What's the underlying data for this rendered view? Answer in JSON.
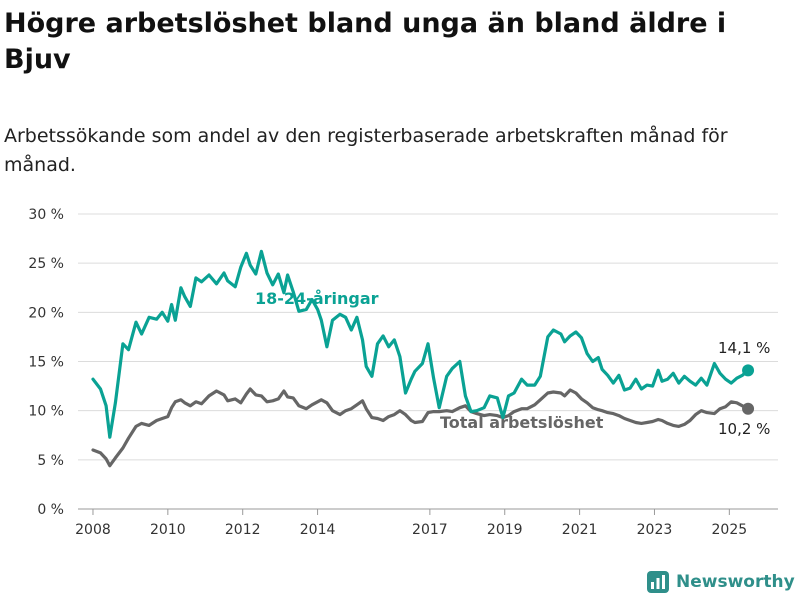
{
  "header": {
    "title": "Högre arbetslöshet bland unga än bland äldre i Bjuv",
    "subtitle": "Arbetssökande som andel av den registerbaserade arbetskraften månad för månad."
  },
  "brand": {
    "name": "Newsworthy",
    "color": "#2f8f8a"
  },
  "chart_data": {
    "type": "line",
    "title": "Högre arbetslöshet bland unga än bland äldre i Bjuv",
    "subtitle": "Arbetssökande som andel av den registerbaserade arbetskraften månad för månad.",
    "xlabel": "",
    "ylabel": "",
    "ylim": [
      0,
      30
    ],
    "xlim": [
      2007.6,
      2026.3
    ],
    "y_ticks": [
      0,
      5,
      10,
      15,
      20,
      25,
      30
    ],
    "y_tick_labels": [
      "0 %",
      "5 %",
      "10 %",
      "15 %",
      "20 %",
      "25 %",
      "30 %"
    ],
    "x_ticks": [
      2008,
      2010,
      2012,
      2014,
      2017,
      2019,
      2021,
      2023,
      2025
    ],
    "x_tick_labels": [
      "2008",
      "2010",
      "2012",
      "2014",
      "2017",
      "2019",
      "2021",
      "2023",
      "2025"
    ],
    "grid": "horizontal",
    "series": [
      {
        "name": "18-24-åringar",
        "color": "#0aa294",
        "end_label": "14,1 %",
        "x": [
          2008.0,
          2008.2,
          2008.35,
          2008.45,
          2008.6,
          2008.8,
          2008.95,
          2009.15,
          2009.3,
          2009.5,
          2009.7,
          2009.85,
          2010.0,
          2010.1,
          2010.2,
          2010.35,
          2010.45,
          2010.6,
          2010.75,
          2010.9,
          2011.1,
          2011.3,
          2011.5,
          2011.6,
          2011.8,
          2011.95,
          2012.1,
          2012.2,
          2012.35,
          2012.5,
          2012.65,
          2012.8,
          2012.95,
          2013.1,
          2013.2,
          2013.35,
          2013.5,
          2013.7,
          2013.85,
          2014.0,
          2014.1,
          2014.25,
          2014.4,
          2014.6,
          2014.75,
          2014.9,
          2015.05,
          2015.2,
          2015.3,
          2015.45,
          2015.6,
          2015.75,
          2015.9,
          2016.05,
          2016.2,
          2016.35,
          2016.5,
          2016.6,
          2016.8,
          2016.95,
          2017.1,
          2017.25,
          2017.45,
          2017.6,
          2017.8,
          2017.95,
          2018.1,
          2018.25,
          2018.45,
          2018.6,
          2018.8,
          2018.95,
          2019.1,
          2019.25,
          2019.45,
          2019.6,
          2019.8,
          2019.95,
          2020.15,
          2020.3,
          2020.5,
          2020.6,
          2020.75,
          2020.9,
          2021.05,
          2021.2,
          2021.35,
          2021.5,
          2021.6,
          2021.75,
          2021.9,
          2022.05,
          2022.2,
          2022.35,
          2022.5,
          2022.65,
          2022.8,
          2022.95,
          2023.1,
          2023.2,
          2023.35,
          2023.5,
          2023.65,
          2023.8,
          2023.95,
          2024.1,
          2024.25,
          2024.4,
          2024.6,
          2024.75,
          2024.9,
          2025.05,
          2025.2,
          2025.35,
          2025.5
        ],
        "values": [
          13.2,
          12.2,
          10.5,
          7.3,
          10.8,
          16.8,
          16.2,
          19.0,
          17.8,
          19.5,
          19.3,
          20.0,
          19.1,
          20.8,
          19.2,
          22.5,
          21.6,
          20.6,
          23.5,
          23.1,
          23.8,
          22.9,
          24.0,
          23.2,
          22.6,
          24.6,
          26.0,
          24.8,
          23.9,
          26.2,
          24.0,
          22.8,
          23.9,
          22.0,
          23.8,
          22.1,
          20.1,
          20.3,
          21.3,
          20.3,
          19.2,
          16.5,
          19.2,
          19.8,
          19.5,
          18.2,
          19.5,
          17.2,
          14.5,
          13.5,
          16.8,
          17.6,
          16.5,
          17.2,
          15.5,
          11.8,
          13.2,
          14.0,
          14.8,
          16.8,
          13.3,
          10.3,
          13.5,
          14.3,
          15.0,
          11.5,
          9.9,
          10.0,
          10.3,
          11.5,
          11.3,
          9.3,
          11.5,
          11.8,
          13.2,
          12.6,
          12.6,
          13.5,
          17.5,
          18.2,
          17.8,
          17.0,
          17.6,
          18.0,
          17.4,
          15.8,
          15.0,
          15.4,
          14.2,
          13.6,
          12.8,
          13.6,
          12.1,
          12.3,
          13.2,
          12.2,
          12.6,
          12.5,
          14.1,
          13.0,
          13.2,
          13.8,
          12.8,
          13.5,
          13.0,
          12.6,
          13.3,
          12.6,
          14.8,
          13.8,
          13.2,
          12.8,
          13.3,
          13.6,
          14.1
        ]
      },
      {
        "name": "Total arbetslöshet",
        "color": "#666666",
        "end_label": "10,2 %",
        "x": [
          2008.0,
          2008.2,
          2008.35,
          2008.45,
          2008.6,
          2008.8,
          2008.95,
          2009.15,
          2009.3,
          2009.5,
          2009.7,
          2009.85,
          2010.0,
          2010.1,
          2010.2,
          2010.35,
          2010.45,
          2010.6,
          2010.75,
          2010.9,
          2011.1,
          2011.3,
          2011.5,
          2011.6,
          2011.8,
          2011.95,
          2012.1,
          2012.2,
          2012.35,
          2012.5,
          2012.65,
          2012.8,
          2012.95,
          2013.1,
          2013.2,
          2013.35,
          2013.5,
          2013.7,
          2013.85,
          2014.0,
          2014.1,
          2014.25,
          2014.4,
          2014.6,
          2014.75,
          2014.9,
          2015.05,
          2015.2,
          2015.3,
          2015.45,
          2015.6,
          2015.75,
          2015.9,
          2016.05,
          2016.2,
          2016.35,
          2016.5,
          2016.6,
          2016.8,
          2016.95,
          2017.1,
          2017.25,
          2017.45,
          2017.6,
          2017.8,
          2017.95,
          2018.1,
          2018.25,
          2018.45,
          2018.6,
          2018.8,
          2018.95,
          2019.1,
          2019.25,
          2019.45,
          2019.6,
          2019.8,
          2019.95,
          2020.15,
          2020.3,
          2020.5,
          2020.6,
          2020.75,
          2020.9,
          2021.05,
          2021.2,
          2021.35,
          2021.5,
          2021.6,
          2021.75,
          2021.9,
          2022.05,
          2022.2,
          2022.35,
          2022.5,
          2022.65,
          2022.8,
          2022.95,
          2023.1,
          2023.2,
          2023.35,
          2023.5,
          2023.65,
          2023.8,
          2023.95,
          2024.1,
          2024.25,
          2024.4,
          2024.6,
          2024.75,
          2024.9,
          2025.05,
          2025.2,
          2025.35,
          2025.5
        ],
        "values": [
          6.0,
          5.7,
          5.1,
          4.4,
          5.2,
          6.2,
          7.2,
          8.4,
          8.7,
          8.5,
          9.0,
          9.2,
          9.4,
          10.3,
          10.9,
          11.1,
          10.8,
          10.5,
          10.9,
          10.7,
          11.5,
          12.0,
          11.6,
          11.0,
          11.2,
          10.8,
          11.7,
          12.2,
          11.6,
          11.5,
          10.9,
          11.0,
          11.2,
          12.0,
          11.4,
          11.3,
          10.5,
          10.2,
          10.6,
          10.9,
          11.1,
          10.8,
          10.0,
          9.6,
          10.0,
          10.2,
          10.6,
          11.0,
          10.2,
          9.3,
          9.2,
          9.0,
          9.4,
          9.6,
          10.0,
          9.6,
          9.0,
          8.8,
          8.9,
          9.8,
          9.9,
          9.9,
          10.0,
          9.9,
          10.3,
          10.5,
          9.9,
          9.7,
          9.5,
          9.6,
          9.5,
          9.3,
          9.5,
          9.9,
          10.2,
          10.2,
          10.6,
          11.1,
          11.8,
          11.9,
          11.8,
          11.5,
          12.1,
          11.8,
          11.2,
          10.8,
          10.3,
          10.1,
          10.0,
          9.8,
          9.7,
          9.5,
          9.2,
          9.0,
          8.8,
          8.7,
          8.8,
          8.9,
          9.1,
          9.0,
          8.7,
          8.5,
          8.4,
          8.6,
          9.0,
          9.6,
          10.0,
          9.8,
          9.7,
          10.2,
          10.4,
          10.9,
          10.8,
          10.5,
          10.2
        ]
      }
    ]
  }
}
